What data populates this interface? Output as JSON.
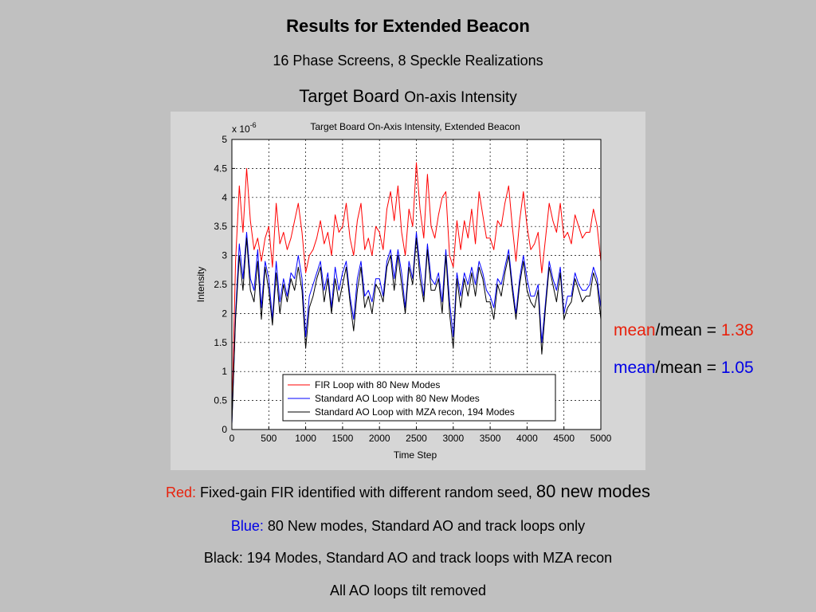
{
  "slide": {
    "title": "Results for Extended Beacon",
    "subtitle": "16 Phase Screens, 8 Speckle Realizations",
    "heading_main": "Target Board",
    "heading_small": "On-axis Intensity"
  },
  "colors": {
    "red": "#e8210c",
    "blue": "#0000e6",
    "black": "#000000"
  },
  "ratios": [
    {
      "word": "mean",
      "rest": "/mean = ",
      "value": "1.38",
      "color": "#e8210c"
    },
    {
      "word": "mean",
      "rest": "/mean = ",
      "value": "1.05",
      "color": "#0000e6"
    }
  ],
  "captions": {
    "red_label": "Red:",
    "red_text": " Fixed-gain FIR identified with different random seed, ",
    "red_big": "80 new modes",
    "blue_label": "Blue:",
    "blue_text": " 80 New modes, Standard AO and track loops only",
    "black_line": "Black: 194 Modes, Standard AO and track loops with MZA recon",
    "all_line": "All AO loops tilt removed"
  },
  "chart_data": {
    "type": "line",
    "title": "Target Board On-Axis Intensity, Extended Beacon",
    "xlabel": "Time Step",
    "ylabel": "Intensity",
    "y_exponent_label": "x 10",
    "y_exponent": "-6",
    "xlim": [
      0,
      5000
    ],
    "ylim": [
      0,
      5
    ],
    "xticks": [
      0,
      500,
      1000,
      1500,
      2000,
      2500,
      3000,
      3500,
      4000,
      4500,
      5000
    ],
    "yticks": [
      0,
      0.5,
      1,
      1.5,
      2,
      2.5,
      3,
      3.5,
      4,
      4.5,
      5
    ],
    "ytick_labels": [
      "0",
      "0.5",
      "1",
      "1.5",
      "2",
      "2.5",
      "3",
      "3.5",
      "4",
      "4.5",
      "5"
    ],
    "grid": true,
    "legend_position": "bottom-center",
    "series": [
      {
        "name": "FIR Loop with 80 New Modes",
        "color": "#ff0000",
        "x": [
          0,
          50,
          100,
          150,
          200,
          250,
          300,
          350,
          400,
          450,
          500,
          550,
          600,
          650,
          700,
          750,
          800,
          850,
          900,
          950,
          1000,
          1050,
          1100,
          1150,
          1200,
          1250,
          1300,
          1350,
          1400,
          1450,
          1500,
          1550,
          1600,
          1650,
          1700,
          1750,
          1800,
          1850,
          1900,
          1950,
          2000,
          2050,
          2100,
          2150,
          2200,
          2250,
          2300,
          2350,
          2400,
          2450,
          2500,
          2550,
          2600,
          2650,
          2700,
          2750,
          2800,
          2850,
          2900,
          2950,
          3000,
          3050,
          3100,
          3150,
          3200,
          3250,
          3300,
          3350,
          3400,
          3450,
          3500,
          3550,
          3600,
          3650,
          3700,
          3750,
          3800,
          3850,
          3900,
          3950,
          4000,
          4050,
          4100,
          4150,
          4200,
          4250,
          4300,
          4350,
          4400,
          4450,
          4500,
          4550,
          4600,
          4650,
          4700,
          4750,
          4800,
          4850,
          4900,
          4950,
          5000
        ],
        "y": [
          0.2,
          2.9,
          4.2,
          3.4,
          4.5,
          3.6,
          3.1,
          3.3,
          2.9,
          3.3,
          3.5,
          2.8,
          3.9,
          3.2,
          3.4,
          3.1,
          3.3,
          3.6,
          3.9,
          3.4,
          2.7,
          3.0,
          3.1,
          3.3,
          3.6,
          3.2,
          3.4,
          3.0,
          3.7,
          3.4,
          3.5,
          3.9,
          3.3,
          3.0,
          3.6,
          3.9,
          3.1,
          3.3,
          3.0,
          3.5,
          3.4,
          3.1,
          3.8,
          4.1,
          3.6,
          4.2,
          3.4,
          3.0,
          3.8,
          3.5,
          4.6,
          3.8,
          3.3,
          4.4,
          3.5,
          3.3,
          3.7,
          4.0,
          4.1,
          3.0,
          2.8,
          3.6,
          3.1,
          3.6,
          3.3,
          3.8,
          3.2,
          4.1,
          3.7,
          3.3,
          3.3,
          3.1,
          3.6,
          3.5,
          3.9,
          4.2,
          3.5,
          2.9,
          3.6,
          4.1,
          3.5,
          3.1,
          3.2,
          3.4,
          2.7,
          3.3,
          3.9,
          3.6,
          3.4,
          3.9,
          3.3,
          3.4,
          3.2,
          3.7,
          3.5,
          3.3,
          3.4,
          3.4,
          3.8,
          3.5,
          2.9
        ]
      },
      {
        "name": "Standard AO Loop with 80 New Modes",
        "color": "#0000ff",
        "x": [
          0,
          50,
          100,
          150,
          200,
          250,
          300,
          350,
          400,
          450,
          500,
          550,
          600,
          650,
          700,
          750,
          800,
          850,
          900,
          950,
          1000,
          1050,
          1100,
          1150,
          1200,
          1250,
          1300,
          1350,
          1400,
          1450,
          1500,
          1550,
          1600,
          1650,
          1700,
          1750,
          1800,
          1850,
          1900,
          1950,
          2000,
          2050,
          2100,
          2150,
          2200,
          2250,
          2300,
          2350,
          2400,
          2450,
          2500,
          2550,
          2600,
          2650,
          2700,
          2750,
          2800,
          2850,
          2900,
          2950,
          3000,
          3050,
          3100,
          3150,
          3200,
          3250,
          3300,
          3350,
          3400,
          3450,
          3500,
          3550,
          3600,
          3650,
          3700,
          3750,
          3800,
          3850,
          3900,
          3950,
          4000,
          4050,
          4100,
          4150,
          4200,
          4250,
          4300,
          4350,
          4400,
          4450,
          4500,
          4550,
          4600,
          4650,
          4700,
          4750,
          4800,
          4850,
          4900,
          4950,
          5000
        ],
        "y": [
          0.1,
          2.0,
          3.2,
          2.6,
          3.4,
          2.6,
          2.4,
          3.1,
          2.1,
          2.9,
          2.6,
          1.9,
          2.9,
          2.2,
          2.6,
          2.3,
          2.7,
          2.6,
          3.0,
          2.6,
          1.6,
          2.3,
          2.5,
          2.7,
          2.9,
          2.4,
          2.7,
          2.1,
          2.8,
          2.4,
          2.7,
          2.9,
          2.3,
          1.9,
          2.6,
          2.9,
          2.3,
          2.4,
          2.2,
          2.6,
          2.6,
          2.3,
          2.9,
          3.1,
          2.6,
          3.1,
          2.7,
          2.1,
          2.9,
          2.6,
          3.4,
          2.8,
          2.3,
          3.2,
          2.6,
          2.5,
          2.7,
          2.2,
          3.1,
          2.2,
          1.6,
          2.7,
          2.3,
          2.7,
          2.5,
          2.8,
          2.5,
          2.9,
          2.7,
          2.4,
          2.3,
          2.1,
          2.6,
          2.5,
          2.8,
          3.1,
          2.5,
          2.0,
          2.6,
          3.0,
          2.6,
          2.3,
          2.3,
          2.5,
          1.5,
          2.2,
          2.9,
          2.6,
          2.4,
          2.8,
          2.0,
          2.3,
          2.3,
          2.7,
          2.5,
          2.4,
          2.4,
          2.5,
          2.8,
          2.6,
          2.1
        ]
      },
      {
        "name": "Standard AO Loop with MZA recon, 194 Modes",
        "color": "#000000",
        "x": [
          0,
          50,
          100,
          150,
          200,
          250,
          300,
          350,
          400,
          450,
          500,
          550,
          600,
          650,
          700,
          750,
          800,
          850,
          900,
          950,
          1000,
          1050,
          1100,
          1150,
          1200,
          1250,
          1300,
          1350,
          1400,
          1450,
          1500,
          1550,
          1600,
          1650,
          1700,
          1750,
          1800,
          1850,
          1900,
          1950,
          2000,
          2050,
          2100,
          2150,
          2200,
          2250,
          2300,
          2350,
          2400,
          2450,
          2500,
          2550,
          2600,
          2650,
          2700,
          2750,
          2800,
          2850,
          2900,
          2950,
          3000,
          3050,
          3100,
          3150,
          3200,
          3250,
          3300,
          3350,
          3400,
          3450,
          3500,
          3550,
          3600,
          3650,
          3700,
          3750,
          3800,
          3850,
          3900,
          3950,
          4000,
          4050,
          4100,
          4150,
          4200,
          4250,
          4300,
          4350,
          4400,
          4450,
          4500,
          4550,
          4600,
          4650,
          4700,
          4750,
          4800,
          4850,
          4900,
          4950,
          5000
        ],
        "y": [
          0.1,
          1.9,
          3.0,
          2.4,
          3.3,
          2.4,
          2.2,
          2.9,
          1.9,
          2.8,
          2.4,
          1.8,
          2.7,
          2.0,
          2.5,
          2.2,
          2.6,
          2.4,
          2.8,
          2.4,
          1.4,
          2.1,
          2.3,
          2.6,
          2.8,
          2.2,
          2.6,
          2.0,
          2.6,
          2.2,
          2.5,
          2.8,
          2.2,
          1.7,
          2.4,
          2.8,
          2.1,
          2.3,
          2.0,
          2.5,
          2.4,
          2.2,
          2.8,
          3.0,
          2.4,
          3.0,
          2.5,
          2.0,
          2.8,
          2.5,
          3.3,
          2.6,
          2.2,
          3.1,
          2.4,
          2.4,
          2.6,
          2.0,
          3.0,
          2.0,
          1.4,
          2.6,
          2.1,
          2.6,
          2.3,
          2.7,
          2.3,
          2.8,
          2.6,
          2.2,
          2.2,
          1.9,
          2.5,
          2.3,
          2.7,
          3.0,
          2.4,
          1.9,
          2.5,
          2.9,
          2.4,
          2.2,
          2.1,
          2.4,
          1.3,
          2.1,
          2.8,
          2.5,
          2.2,
          2.7,
          1.9,
          2.1,
          2.2,
          2.6,
          2.4,
          2.2,
          2.3,
          2.3,
          2.7,
          2.5,
          1.9
        ]
      }
    ]
  }
}
